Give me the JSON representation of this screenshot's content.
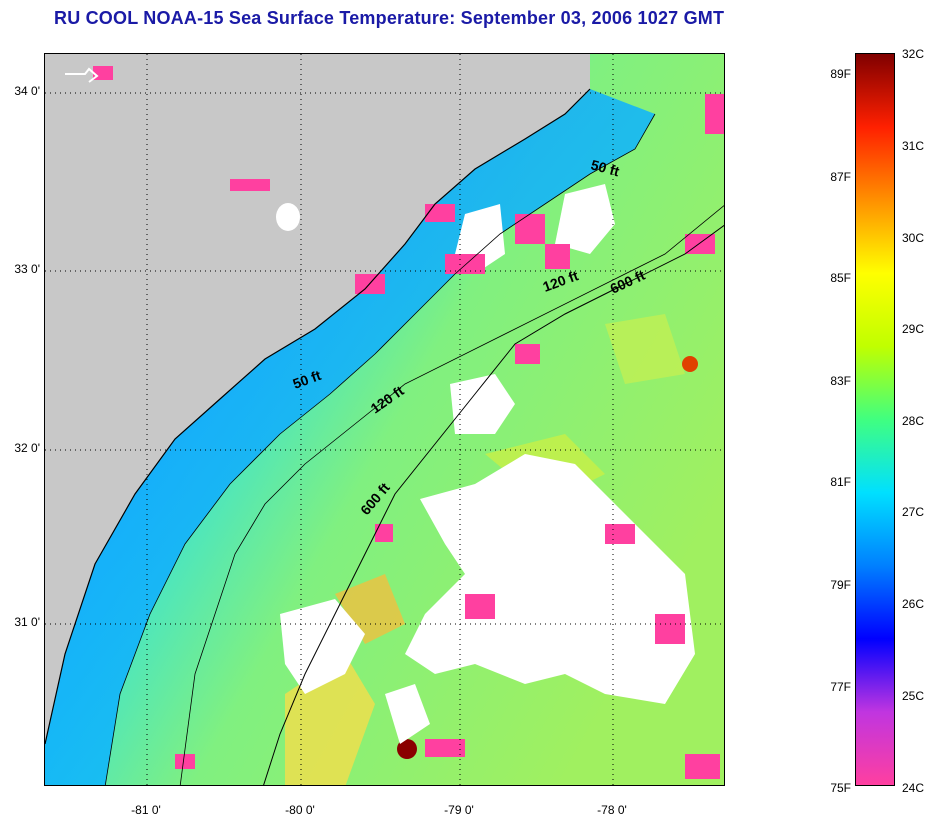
{
  "title": "RU COOL  NOAA-15  Sea Surface Temperature:  September 03, 2006 1027 GMT",
  "map": {
    "lat_labels": [
      "34 0'",
      "33 0'",
      "32 0'",
      "31 0'"
    ],
    "lon_labels": [
      "-81 0'",
      "-80 0'",
      "-79 0'",
      "-78 0'"
    ],
    "contour_labels": {
      "north_50": "50 ft",
      "south_50": "50 ft",
      "north_120": "120 ft",
      "south_120": "120 ft",
      "north_600": "600 ft",
      "south_600": "600 ft"
    },
    "colors": {
      "land": "#c8c8c8",
      "cloud": "#ffffff",
      "grid": "#000000"
    }
  },
  "colorbar": {
    "fahrenheit_labels": [
      "89F",
      "87F",
      "85F",
      "83F",
      "81F",
      "79F",
      "77F",
      "75F"
    ],
    "celsius_labels": [
      "32C",
      "31C",
      "30C",
      "29C",
      "28C",
      "27C",
      "26C",
      "25C",
      "24C"
    ],
    "stops": [
      "#ff3fa0",
      "#c035e0",
      "#0000ff",
      "#0080ff",
      "#00e0ff",
      "#40ff80",
      "#c0ff00",
      "#ffff00",
      "#ff9000",
      "#ff2000",
      "#800000"
    ]
  }
}
